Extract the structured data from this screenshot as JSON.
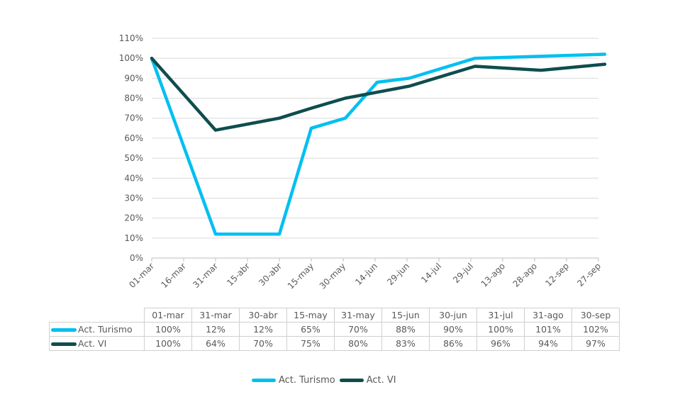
{
  "chart_data": {
    "type": "line",
    "x": [
      "01-mar",
      "16-mar",
      "31-mar",
      "15-abr",
      "30-abr",
      "15-may",
      "30-may",
      "14-jun",
      "29-jun",
      "14-jul",
      "29-jul",
      "13-ago",
      "28-ago",
      "12-sep",
      "27-sep"
    ],
    "ylim": [
      0,
      110
    ],
    "yticks": [
      "0%",
      "10%",
      "20%",
      "30%",
      "40%",
      "50%",
      "60%",
      "70%",
      "80%",
      "90%",
      "100%",
      "110%"
    ],
    "grid": true,
    "legend_position": "bottom",
    "series": [
      {
        "name": "Act. Turismo",
        "color": "#00c0f0",
        "points": [
          [
            "01-mar",
            100
          ],
          [
            "31-mar",
            12
          ],
          [
            "30-abr",
            12
          ],
          [
            "15-may",
            65
          ],
          [
            "31-may",
            70
          ],
          [
            "15-jun",
            88
          ],
          [
            "30-jun",
            90
          ],
          [
            "31-jul",
            100
          ],
          [
            "31-ago",
            101
          ],
          [
            "30-sep",
            102
          ]
        ]
      },
      {
        "name": "Act. VI",
        "color": "#0f4d4d",
        "points": [
          [
            "01-mar",
            100
          ],
          [
            "31-mar",
            64
          ],
          [
            "30-abr",
            70
          ],
          [
            "15-may",
            75
          ],
          [
            "31-may",
            80
          ],
          [
            "15-jun",
            83
          ],
          [
            "30-jun",
            86
          ],
          [
            "31-jul",
            96
          ],
          [
            "31-ago",
            94
          ],
          [
            "30-sep",
            97
          ]
        ]
      }
    ]
  },
  "table": {
    "headers": [
      "01-mar",
      "31-mar",
      "30-abr",
      "15-may",
      "31-may",
      "15-jun",
      "30-jun",
      "31-jul",
      "31-ago",
      "30-sep"
    ],
    "rows": [
      {
        "label": "Act. Turismo",
        "values": [
          "100%",
          "12%",
          "12%",
          "65%",
          "70%",
          "88%",
          "90%",
          "100%",
          "101%",
          "102%"
        ]
      },
      {
        "label": "Act. VI",
        "values": [
          "100%",
          "64%",
          "70%",
          "75%",
          "80%",
          "83%",
          "86%",
          "96%",
          "94%",
          "97%"
        ]
      }
    ]
  },
  "legend": {
    "items": [
      {
        "label": "Act. Turismo"
      },
      {
        "label": "Act. VI"
      }
    ]
  }
}
